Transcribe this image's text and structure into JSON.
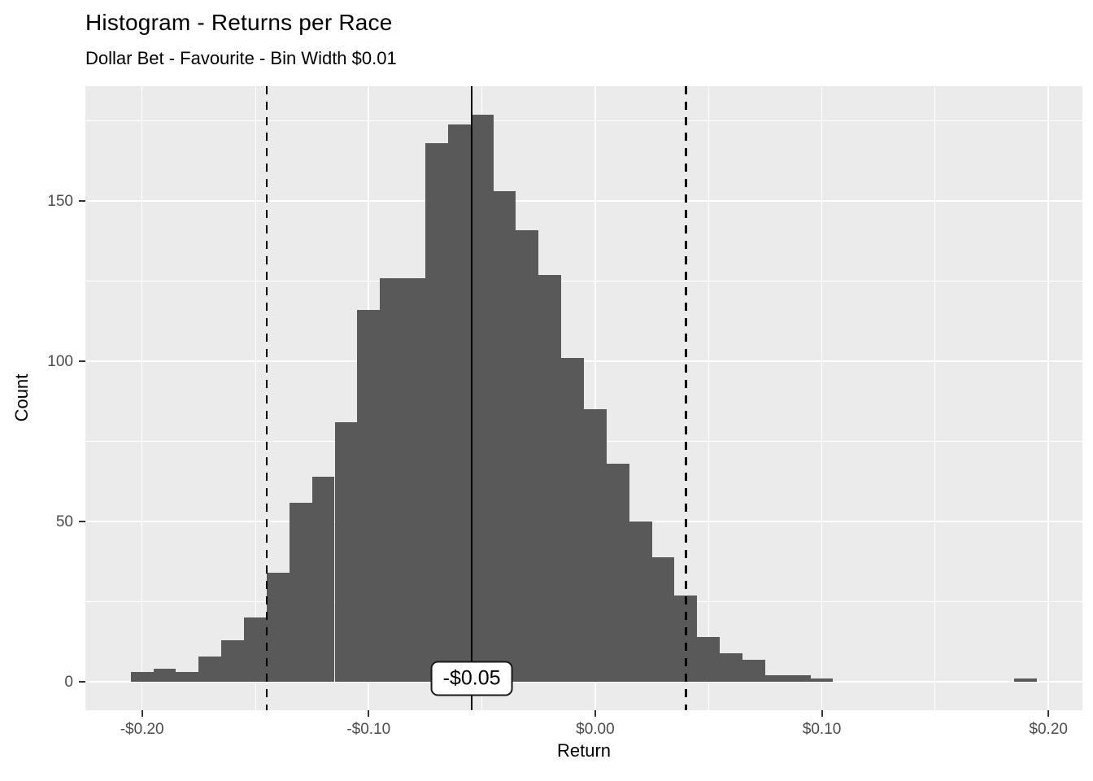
{
  "header": {
    "title": "Histogram - Returns per Race",
    "subtitle": "Dollar Bet - Favourite - Bin Width $0.01"
  },
  "chart_data": {
    "type": "bar",
    "chart_kind": "histogram",
    "title": "Histogram - Returns per Race",
    "subtitle": "Dollar Bet - Favourite - Bin Width $0.01",
    "xlabel": "Return",
    "ylabel": "Count",
    "bin_width": 0.01,
    "bin_centers": [
      -0.2,
      -0.19,
      -0.18,
      -0.17,
      -0.16,
      -0.15,
      -0.14,
      -0.13,
      -0.12,
      -0.11,
      -0.1,
      -0.09,
      -0.08,
      -0.07,
      -0.06,
      -0.05,
      -0.04,
      -0.03,
      -0.02,
      -0.01,
      0.0,
      0.01,
      0.02,
      0.03,
      0.04,
      0.05,
      0.06,
      0.07,
      0.08,
      0.09,
      0.1,
      0.19
    ],
    "counts": [
      3,
      4,
      3,
      8,
      13,
      20,
      34,
      56,
      64,
      81,
      116,
      126,
      126,
      168,
      174,
      177,
      153,
      141,
      127,
      101,
      85,
      68,
      50,
      39,
      27,
      14,
      9,
      7,
      2,
      2,
      1,
      1
    ],
    "x_ticks": {
      "values": [
        -0.2,
        -0.1,
        0.0,
        0.1,
        0.2
      ],
      "labels": [
        "-$0.20",
        "-$0.10",
        "$0.00",
        "$0.10",
        "$0.20"
      ]
    },
    "y_ticks": {
      "values": [
        0,
        50,
        100,
        150
      ],
      "labels": [
        "0",
        "50",
        "100",
        "150"
      ]
    },
    "x_minor_gridlines": [
      -0.15,
      -0.05,
      0.05,
      0.15
    ],
    "y_minor_gridlines": [
      25,
      75,
      125,
      175
    ],
    "xlim": [
      -0.225,
      0.215
    ],
    "ylim": [
      -8.85,
      185.85
    ],
    "grid": true,
    "legend": "none",
    "mean_line": {
      "x": -0.0545,
      "style": "solid",
      "label": "-$0.05"
    },
    "dashed_lines": [
      -0.145,
      0.04
    ],
    "colors": {
      "bar": "#595959",
      "panel_background": "#EBEBEB",
      "gridline": "#FFFFFF",
      "reference_line": "#000000",
      "tick_text": "#4D4D4D",
      "axis_tick": "#333333",
      "label_box_background": "#FFFFFF",
      "label_box_border": "#1a1a1a"
    }
  }
}
